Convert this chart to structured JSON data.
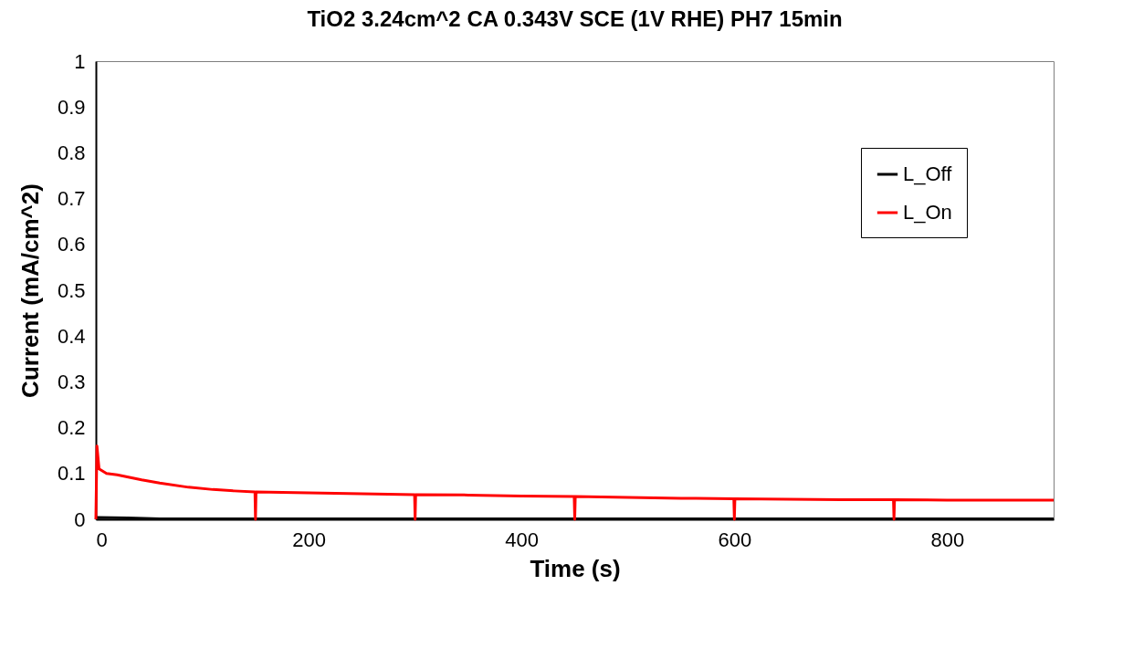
{
  "chart_data": {
    "type": "line",
    "title": "TiO2 3.24cm^2 CA 0.343V SCE (1V RHE) PH7 15min",
    "xlabel": "Time (s)",
    "ylabel": "Current (mA/cm^2)",
    "xlim": [
      0,
      900
    ],
    "xticks": [
      0,
      200,
      400,
      600,
      800
    ],
    "ylim": [
      0,
      1
    ],
    "yticks": [
      {
        "value": 0,
        "label": "0"
      },
      0.1,
      0.2,
      0.3,
      0.4,
      0.5,
      0.6,
      0.7,
      0.8,
      0.9,
      {
        "value": 1,
        "label": "1"
      }
    ],
    "grid": false,
    "legend": "top right",
    "marker": "none",
    "line_style": "solid",
    "series": [
      {
        "name": "L_Off",
        "color": "#000000",
        "x": [
          0,
          1,
          30,
          60,
          900
        ],
        "values": [
          0,
          0.004,
          0.003,
          0.001,
          0.001
        ]
      },
      {
        "name": "L_On",
        "color": "#ff0000",
        "x": [
          0,
          1,
          3,
          10,
          20,
          43,
          60,
          87,
          110,
          130,
          149.5,
          150,
          150.5,
          200,
          250,
          299.5,
          300,
          300.5,
          350,
          400,
          449.5,
          450,
          450.5,
          500,
          550,
          599.5,
          600,
          600.5,
          650,
          700,
          749.5,
          750,
          750.5,
          800,
          850,
          900
        ],
        "values": [
          0,
          0.16,
          0.11,
          0.1,
          0.097,
          0.086,
          0.079,
          0.07,
          0.065,
          0.062,
          0.06,
          0,
          0.06,
          0.058,
          0.056,
          0.054,
          0,
          0.054,
          0.053,
          0.051,
          0.05,
          0,
          0.05,
          0.048,
          0.046,
          0.045,
          0,
          0.045,
          0.044,
          0.043,
          0.043,
          0,
          0.043,
          0.042,
          0.042,
          0.042
        ]
      }
    ]
  }
}
